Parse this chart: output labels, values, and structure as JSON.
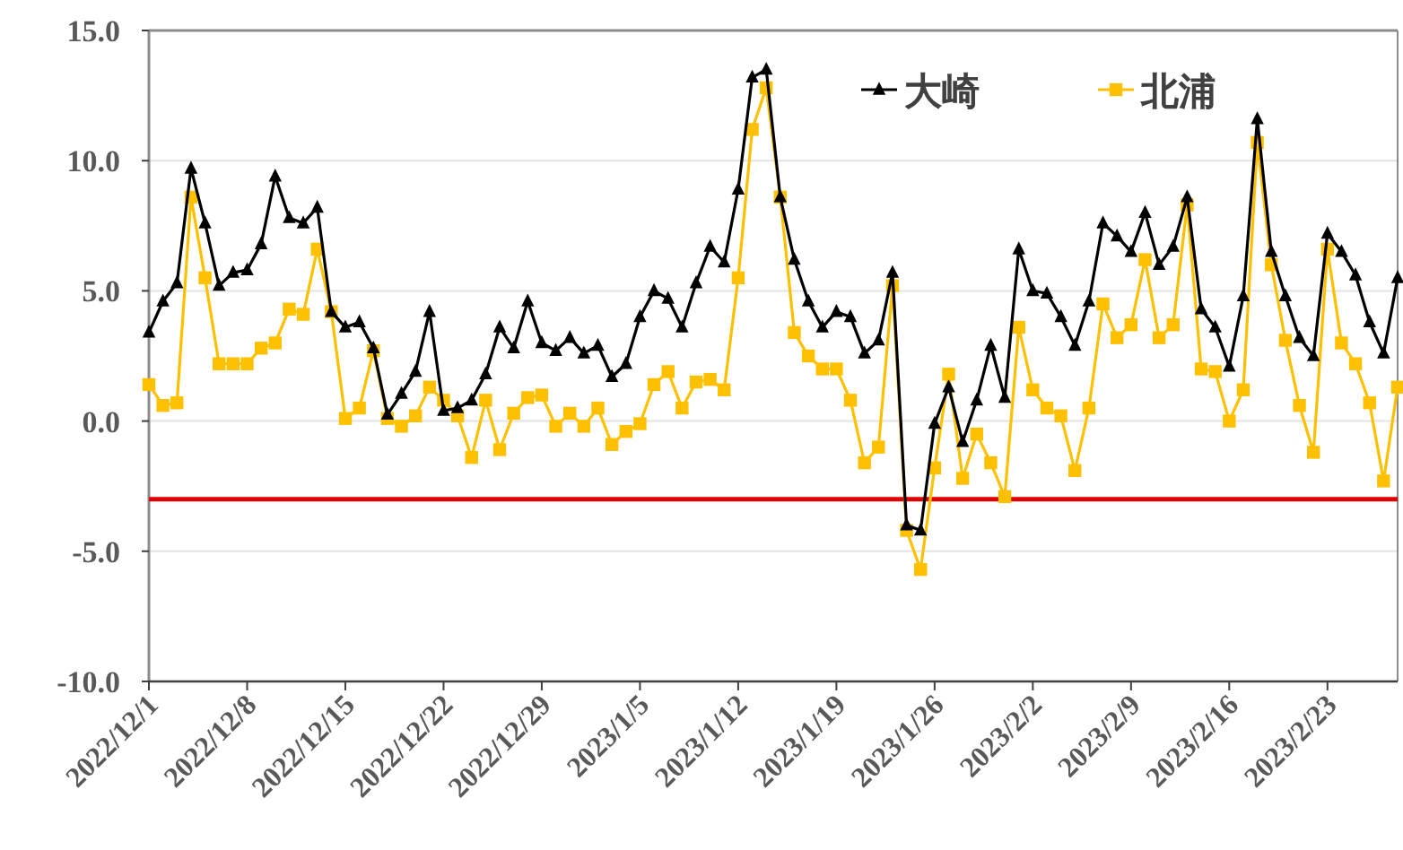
{
  "chart_data": {
    "type": "line",
    "x": [
      "2022-12-01",
      "2022-12-02",
      "2022-12-03",
      "2022-12-04",
      "2022-12-05",
      "2022-12-06",
      "2022-12-07",
      "2022-12-08",
      "2022-12-09",
      "2022-12-10",
      "2022-12-11",
      "2022-12-12",
      "2022-12-13",
      "2022-12-14",
      "2022-12-15",
      "2022-12-16",
      "2022-12-17",
      "2022-12-18",
      "2022-12-19",
      "2022-12-20",
      "2022-12-21",
      "2022-12-22",
      "2022-12-23",
      "2022-12-24",
      "2022-12-25",
      "2022-12-26",
      "2022-12-27",
      "2022-12-28",
      "2022-12-29",
      "2022-12-30",
      "2022-12-31",
      "2023-01-01",
      "2023-01-02",
      "2023-01-03",
      "2023-01-04",
      "2023-01-05",
      "2023-01-06",
      "2023-01-07",
      "2023-01-08",
      "2023-01-09",
      "2023-01-10",
      "2023-01-11",
      "2023-01-12",
      "2023-01-13",
      "2023-01-14",
      "2023-01-15",
      "2023-01-16",
      "2023-01-17",
      "2023-01-18",
      "2023-01-19",
      "2023-01-20",
      "2023-01-21",
      "2023-01-22",
      "2023-01-23",
      "2023-01-24",
      "2023-01-25",
      "2023-01-26",
      "2023-01-27",
      "2023-01-28",
      "2023-01-29",
      "2023-01-30",
      "2023-01-31",
      "2023-02-01",
      "2023-02-02",
      "2023-02-03",
      "2023-02-04",
      "2023-02-05",
      "2023-02-06",
      "2023-02-07",
      "2023-02-08",
      "2023-02-09",
      "2023-02-10",
      "2023-02-11",
      "2023-02-12",
      "2023-02-13",
      "2023-02-14",
      "2023-02-15",
      "2023-02-16",
      "2023-02-17",
      "2023-02-18",
      "2023-02-19",
      "2023-02-20",
      "2023-02-21",
      "2023-02-22",
      "2023-02-23",
      "2023-02-24",
      "2023-02-25",
      "2023-02-26",
      "2023-02-27",
      "2023-02-28"
    ],
    "series": [
      {
        "name": "大崎",
        "color": "#000000",
        "marker": "triangle",
        "values": [
          3.4,
          4.6,
          5.3,
          9.7,
          7.6,
          5.2,
          5.7,
          5.8,
          6.8,
          9.4,
          7.8,
          7.6,
          8.2,
          4.2,
          3.6,
          3.8,
          2.8,
          0.25,
          1.05,
          1.9,
          4.2,
          0.4,
          0.5,
          0.8,
          1.8,
          3.6,
          2.8,
          4.6,
          3.0,
          2.7,
          3.2,
          2.6,
          2.9,
          1.7,
          2.2,
          4.0,
          5.0,
          4.7,
          3.6,
          5.3,
          6.7,
          6.1,
          8.9,
          13.2,
          13.5,
          8.6,
          6.2,
          4.6,
          3.6,
          4.2,
          4.0,
          2.6,
          3.1,
          5.7,
          -4.0,
          -4.2,
          -0.1,
          1.3,
          -0.8,
          0.8,
          2.9,
          0.9,
          6.6,
          5.0,
          4.9,
          4.0,
          2.9,
          4.6,
          7.6,
          7.1,
          6.5,
          8.0,
          6.0,
          6.7,
          8.6,
          4.3,
          3.6,
          2.1,
          4.8,
          11.6,
          6.5,
          4.8,
          3.2,
          2.5,
          7.2,
          6.5,
          5.6,
          3.8,
          2.6,
          5.5
        ]
      },
      {
        "name": "北浦",
        "color": "#ffc000",
        "marker": "square",
        "values": [
          1.4,
          0.6,
          0.7,
          8.6,
          5.5,
          2.2,
          2.2,
          2.2,
          2.8,
          3.0,
          4.3,
          4.1,
          6.6,
          4.2,
          0.1,
          0.5,
          2.7,
          0.1,
          -0.2,
          0.2,
          1.3,
          0.8,
          0.2,
          -1.4,
          0.8,
          -1.1,
          0.3,
          0.9,
          1.0,
          -0.2,
          0.3,
          -0.2,
          0.5,
          -0.9,
          -0.4,
          -0.1,
          1.4,
          1.9,
          0.5,
          1.5,
          1.6,
          1.2,
          5.5,
          11.2,
          12.8,
          8.6,
          3.4,
          2.5,
          2.0,
          2.0,
          0.8,
          -1.6,
          -1.0,
          5.2,
          -4.2,
          -5.7,
          -1.8,
          1.8,
          -2.2,
          -0.5,
          -1.6,
          -2.9,
          3.6,
          1.2,
          0.5,
          0.2,
          -1.9,
          0.5,
          4.5,
          3.2,
          3.7,
          6.2,
          3.2,
          3.7,
          8.3,
          2.0,
          1.9,
          0.0,
          1.2,
          10.7,
          6.0,
          3.1,
          0.6,
          -1.2,
          6.6,
          3.0,
          2.2,
          0.7,
          -2.3,
          1.3
        ]
      }
    ],
    "xlim": [
      "2022-12-01",
      "2023-02-28"
    ],
    "xticks": [
      {
        "value": "2022-12-01",
        "label": "2022/12/1"
      },
      {
        "value": "2022-12-08",
        "label": "2022/12/8"
      },
      {
        "value": "2022-12-15",
        "label": "2022/12/15"
      },
      {
        "value": "2022-12-22",
        "label": "2022/12/22"
      },
      {
        "value": "2022-12-29",
        "label": "2022/12/29"
      },
      {
        "value": "2023-01-05",
        "label": "2023/1/5"
      },
      {
        "value": "2023-01-12",
        "label": "2023/1/12"
      },
      {
        "value": "2023-01-19",
        "label": "2023/1/19"
      },
      {
        "value": "2023-01-26",
        "label": "2023/1/26"
      },
      {
        "value": "2023-02-02",
        "label": "2023/2/2"
      },
      {
        "value": "2023-02-09",
        "label": "2023/2/9"
      },
      {
        "value": "2023-02-16",
        "label": "2023/2/16"
      },
      {
        "value": "2023-02-23",
        "label": "2023/2/23"
      }
    ],
    "ylim": [
      -10,
      15
    ],
    "yticks": [
      {
        "value": -10,
        "label": "-10.0"
      },
      {
        "value": -5,
        "label": "-5.0"
      },
      {
        "value": 0,
        "label": "0.0"
      },
      {
        "value": 5,
        "label": "5.0"
      },
      {
        "value": 10,
        "label": "10.0"
      },
      {
        "value": 15,
        "label": "15.0"
      }
    ],
    "ref_lines": [
      {
        "axis": "y",
        "value": -3,
        "color": "#e00000"
      }
    ],
    "grid": "y",
    "legend": "top right",
    "line_style": "solid"
  }
}
